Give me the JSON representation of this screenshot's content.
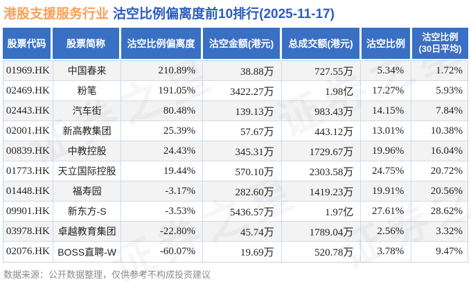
{
  "title": {
    "sector": "港股支援服务行业",
    "main": "沽空比例偏离度前10排行(2025-11-17)"
  },
  "watermark": {
    "text": "证券之星"
  },
  "footer": {
    "text": "数据来源：公开数据整理，仅供参考不构成投资建议"
  },
  "colors": {
    "title_sector_orange": "#f9a057",
    "title_blue": "#2b5cbf",
    "header_bg": "#3a70c4",
    "header_text": "#ffffff",
    "row_stripe": "#f3f3f3",
    "grid_border": "#cbdcee",
    "body_text": "#222222",
    "footer_text": "#8a8a8a"
  },
  "chart_data": {
    "type": "table",
    "title": "港股支援服务行业 沽空比例偏离度前10排行(2025-11-17)",
    "date": "2025-11-17",
    "columns": [
      {
        "label": "股票代码"
      },
      {
        "label": "股票简称"
      },
      {
        "label": "沽空比例偏离度"
      },
      {
        "label": "沽空金额(港元)"
      },
      {
        "label": "总成交额(港元)"
      },
      {
        "label": "沽空比例"
      },
      {
        "label": "沽空比例",
        "label2": "(30日平均)"
      }
    ],
    "rows": [
      [
        "01969.HK",
        "中国春来",
        "210.89%",
        "38.88万",
        "727.55万",
        "5.34%",
        "1.72%"
      ],
      [
        "02469.HK",
        "粉笔",
        "191.05%",
        "3422.27万",
        "1.98亿",
        "17.27%",
        "5.93%"
      ],
      [
        "02443.HK",
        "汽车街",
        "80.48%",
        "139.13万",
        "983.43万",
        "14.15%",
        "7.84%"
      ],
      [
        "02001.HK",
        "新高教集团",
        "25.39%",
        "57.67万",
        "443.12万",
        "13.01%",
        "10.38%"
      ],
      [
        "00839.HK",
        "中教控股",
        "24.43%",
        "345.31万",
        "1729.67万",
        "19.96%",
        "16.04%"
      ],
      [
        "01773.HK",
        "天立国际控股",
        "19.44%",
        "570.10万",
        "2303.58万",
        "24.75%",
        "20.72%"
      ],
      [
        "01448.HK",
        "福寿园",
        "-3.17%",
        "282.60万",
        "1419.23万",
        "19.91%",
        "20.56%"
      ],
      [
        "09901.HK",
        "新东方-S",
        "-3.53%",
        "5436.57万",
        "1.97亿",
        "27.61%",
        "28.62%"
      ],
      [
        "03978.HK",
        "卓越教育集团",
        "-22.80%",
        "45.74万",
        "1789.04万",
        "2.56%",
        "3.32%"
      ],
      [
        "02076.HK",
        "BOSS直聘-W",
        "-60.07%",
        "19.69万",
        "520.78万",
        "3.78%",
        "9.47%"
      ]
    ]
  }
}
